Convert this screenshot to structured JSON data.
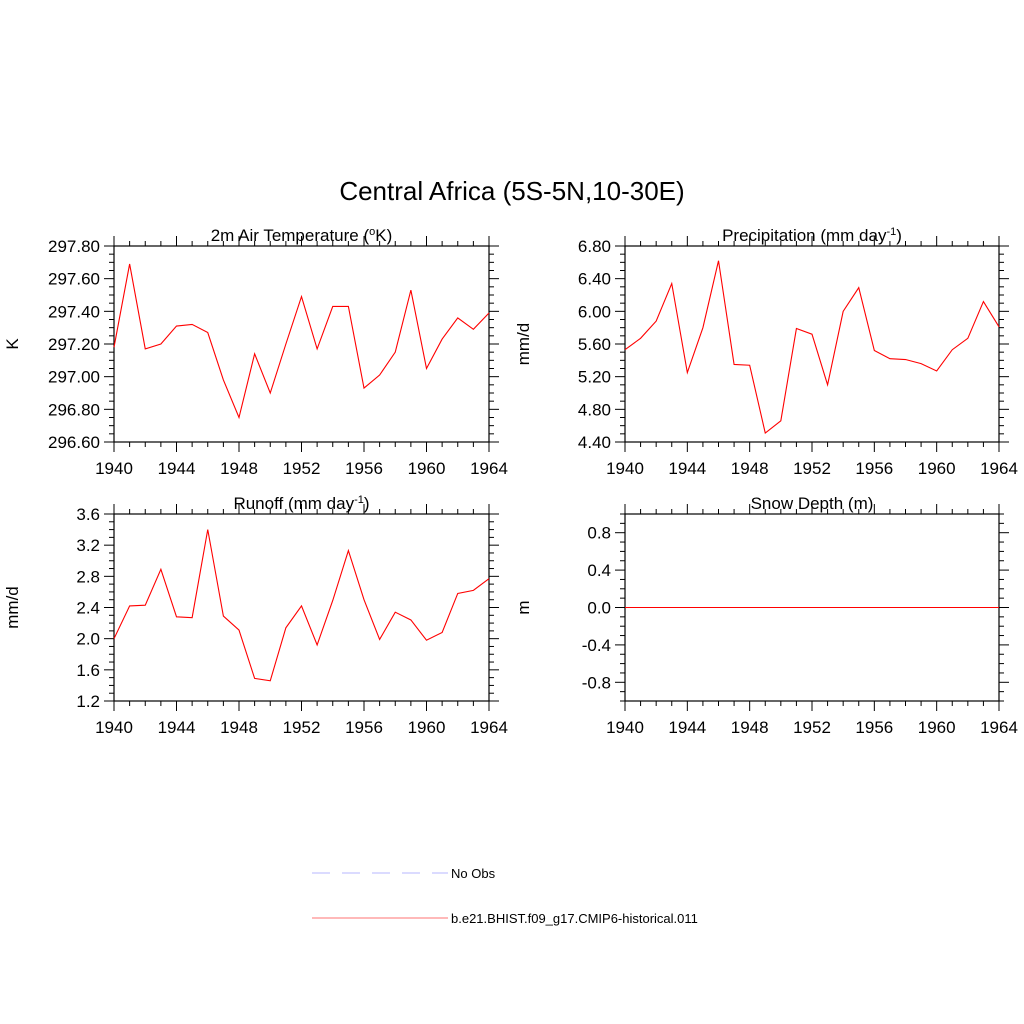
{
  "title": "Central Africa (5S-5N,10-30E)",
  "colors": {
    "model": "#ff0000",
    "obs": "#9999ff",
    "axis": "#000000"
  },
  "chart_data": [
    {
      "type": "line",
      "title_parts": [
        "2m Air Temperature (",
        "o",
        "K)"
      ],
      "ylabel": "K",
      "xlim": [
        1940,
        1964
      ],
      "ylim": [
        296.6,
        297.8
      ],
      "yticks": [
        "296.60",
        "296.80",
        "297.00",
        "297.20",
        "297.40",
        "297.60",
        "297.80"
      ],
      "xticks": [
        "1940",
        "1944",
        "1948",
        "1952",
        "1956",
        "1960",
        "1964"
      ],
      "x": [
        1940,
        1941,
        1942,
        1943,
        1944,
        1945,
        1946,
        1947,
        1948,
        1949,
        1950,
        1951,
        1952,
        1953,
        1954,
        1955,
        1956,
        1957,
        1958,
        1959,
        1960,
        1961,
        1962,
        1963,
        1964
      ],
      "series": [
        {
          "values": [
            297.18,
            297.69,
            297.17,
            297.2,
            297.31,
            297.32,
            297.27,
            296.98,
            296.75,
            297.14,
            296.9,
            297.2,
            297.49,
            297.17,
            297.43,
            297.43,
            296.93,
            297.01,
            297.15,
            297.53,
            297.05,
            297.23,
            297.36,
            297.29,
            297.39
          ]
        }
      ]
    },
    {
      "type": "line",
      "title_parts": [
        "Precipitation (mm day",
        "-1",
        ")"
      ],
      "ylabel": "mm/d",
      "xlim": [
        1940,
        1964
      ],
      "ylim": [
        4.4,
        6.8
      ],
      "yticks": [
        "4.40",
        "4.80",
        "5.20",
        "5.60",
        "6.00",
        "6.40",
        "6.80"
      ],
      "xticks": [
        "1940",
        "1944",
        "1948",
        "1952",
        "1956",
        "1960",
        "1964"
      ],
      "x": [
        1940,
        1941,
        1942,
        1943,
        1944,
        1945,
        1946,
        1947,
        1948,
        1949,
        1950,
        1951,
        1952,
        1953,
        1954,
        1955,
        1956,
        1957,
        1958,
        1959,
        1960,
        1961,
        1962,
        1963,
        1964
      ],
      "series": [
        {
          "values": [
            5.53,
            5.67,
            5.88,
            6.34,
            5.25,
            5.8,
            6.62,
            5.35,
            5.34,
            4.51,
            4.66,
            5.79,
            5.72,
            5.1,
            6.0,
            6.29,
            5.52,
            5.42,
            5.41,
            5.36,
            5.27,
            5.53,
            5.67,
            6.12,
            5.81
          ]
        }
      ]
    },
    {
      "type": "line",
      "title_parts": [
        "Runoff (mm day",
        "-1",
        ")"
      ],
      "ylabel": "mm/d",
      "xlim": [
        1940,
        1964
      ],
      "ylim": [
        1.2,
        3.6
      ],
      "yticks": [
        "1.2",
        "1.6",
        "2.0",
        "2.4",
        "2.8",
        "3.2",
        "3.6"
      ],
      "xticks": [
        "1940",
        "1944",
        "1948",
        "1952",
        "1956",
        "1960",
        "1964"
      ],
      "x": [
        1940,
        1941,
        1942,
        1943,
        1944,
        1945,
        1946,
        1947,
        1948,
        1949,
        1950,
        1951,
        1952,
        1953,
        1954,
        1955,
        1956,
        1957,
        1958,
        1959,
        1960,
        1961,
        1962,
        1963,
        1964
      ],
      "series": [
        {
          "values": [
            2.0,
            2.42,
            2.43,
            2.89,
            2.28,
            2.27,
            3.4,
            2.29,
            2.11,
            1.49,
            1.46,
            2.14,
            2.42,
            1.92,
            2.49,
            3.13,
            2.5,
            1.99,
            2.34,
            2.24,
            1.98,
            2.08,
            2.58,
            2.62,
            2.77
          ]
        }
      ]
    },
    {
      "type": "line",
      "title_parts": [
        "Snow Depth (m)",
        "",
        ""
      ],
      "ylabel": "m",
      "xlim": [
        1940,
        1964
      ],
      "ylim": [
        -1.0,
        1.0
      ],
      "yticks": [
        "-0.8",
        "-0.4",
        "0.0",
        "0.4",
        "0.8"
      ],
      "ytick_values": [
        -0.8,
        -0.4,
        0.0,
        0.4,
        0.8
      ],
      "xticks": [
        "1940",
        "1944",
        "1948",
        "1952",
        "1956",
        "1960",
        "1964"
      ],
      "x": [
        1940,
        1964
      ],
      "series": [
        {
          "values": [
            0.0,
            0.0
          ]
        }
      ]
    }
  ],
  "legend": [
    {
      "label": "No Obs",
      "style": "dashed"
    },
    {
      "label": "b.e21.BHIST.f09_g17.CMIP6-historical.011",
      "style": "solid"
    }
  ]
}
